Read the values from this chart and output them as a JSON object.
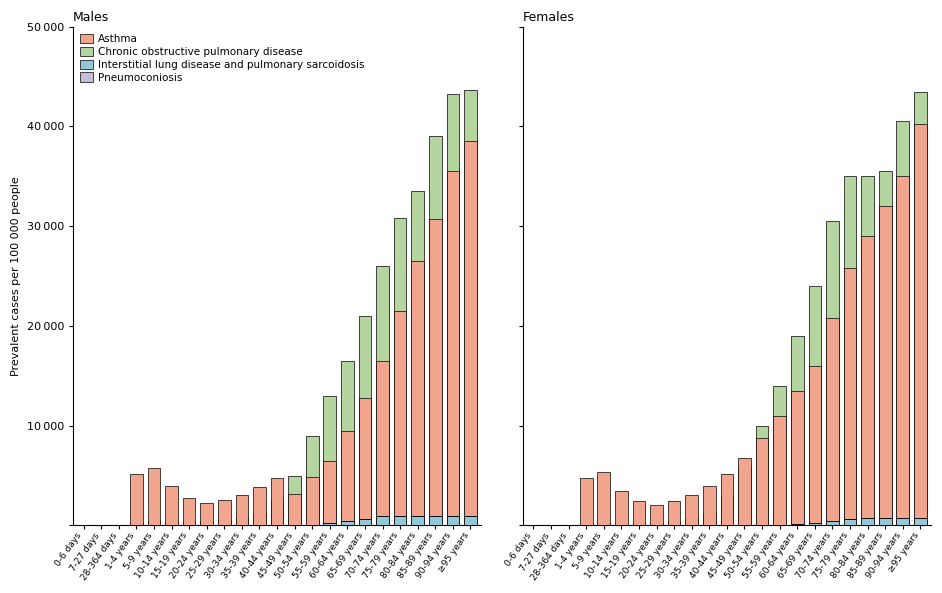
{
  "age_groups": [
    "0-6 days",
    "7-27 days",
    "28-364 days",
    "1-4 years",
    "5-9 years",
    "10-14 years",
    "15-19 years",
    "20-24 years",
    "25-29 years",
    "30-34 years",
    "35-39 years",
    "40-44 years",
    "45-49 years",
    "50-54 years",
    "55-59 years",
    "60-64 years",
    "65-69 years",
    "70-74 years",
    "75-79 years",
    "80-84 years",
    "85-89 years",
    "90-94 years",
    "≥95 years"
  ],
  "males": {
    "asthma": [
      0,
      0,
      0,
      5200,
      5800,
      3900,
      2700,
      2200,
      2500,
      3000,
      3800,
      4800,
      3100,
      4900,
      6500,
      9500,
      12800,
      16500,
      21500,
      26500,
      30700,
      35500,
      38500
    ],
    "copd": [
      0,
      0,
      0,
      200,
      400,
      300,
      300,
      400,
      600,
      800,
      1200,
      2500,
      5000,
      9000,
      13000,
      16500,
      21000,
      26000,
      30800,
      33500,
      39000,
      43200,
      43700
    ],
    "ild": [
      0,
      0,
      0,
      0,
      0,
      0,
      0,
      0,
      0,
      0,
      0,
      0,
      0,
      0,
      200,
      400,
      600,
      900,
      900,
      900,
      900,
      900,
      900
    ],
    "pneumo": [
      0,
      0,
      0,
      0,
      0,
      0,
      0,
      0,
      0,
      0,
      0,
      0,
      0,
      0,
      0,
      0,
      0,
      0,
      0,
      0,
      0,
      0,
      0
    ]
  },
  "females": {
    "asthma": [
      0,
      0,
      0,
      4800,
      5400,
      3400,
      2400,
      2000,
      2400,
      3000,
      4000,
      5200,
      6800,
      8800,
      11000,
      13500,
      16000,
      20800,
      25800,
      29000,
      32000,
      35000,
      40200
    ],
    "copd": [
      0,
      0,
      0,
      100,
      200,
      150,
      200,
      200,
      400,
      700,
      1200,
      3000,
      6000,
      10000,
      14000,
      19000,
      24000,
      30500,
      35000,
      35000,
      35500,
      40500,
      43500
    ],
    "ild": [
      0,
      0,
      0,
      0,
      0,
      0,
      0,
      0,
      0,
      0,
      0,
      0,
      0,
      0,
      0,
      100,
      200,
      400,
      600,
      700,
      700,
      700,
      700
    ],
    "pneumo": [
      0,
      0,
      0,
      0,
      0,
      0,
      0,
      0,
      0,
      0,
      0,
      0,
      0,
      0,
      0,
      0,
      0,
      0,
      0,
      0,
      0,
      0,
      0
    ]
  },
  "colors": {
    "asthma": "#F2A58E",
    "copd": "#B5D5A0",
    "ild": "#90C8D8",
    "pneumo": "#C8BCDC"
  },
  "ylabel": "Prevalent cases per 100 000 people",
  "title_males": "Males",
  "title_females": "Females",
  "ylim": [
    0,
    50000
  ],
  "yticks": [
    0,
    10000,
    20000,
    30000,
    40000,
    50000
  ],
  "legend_labels": [
    "Asthma",
    "Chronic obstructive pulmonary disease",
    "Interstitial lung disease and pulmonary sarcoidosis",
    "Pneumoconiosis"
  ]
}
